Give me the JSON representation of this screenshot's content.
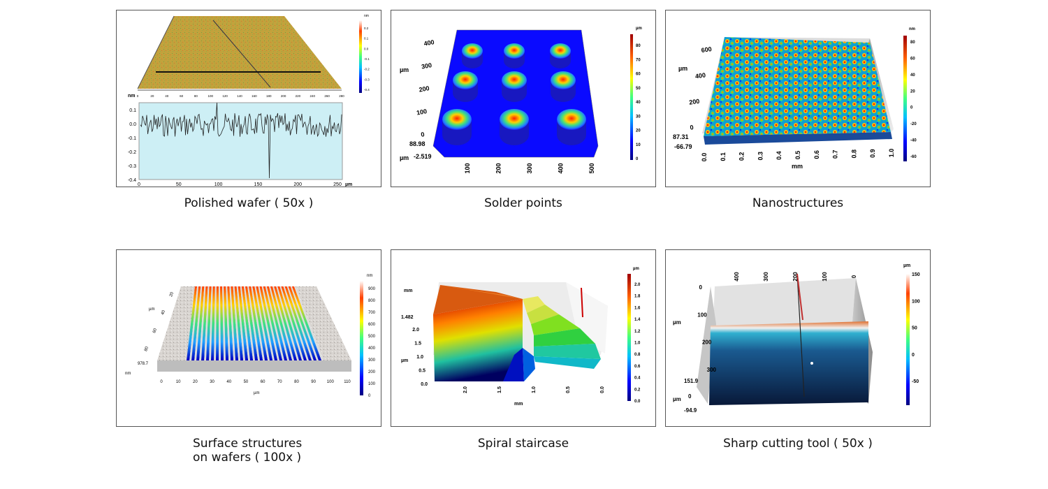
{
  "panels": [
    {
      "id": "polished-wafer",
      "caption": [
        "Polished wafer ( 50x )"
      ],
      "colorbar": {
        "unit": "nm",
        "ticks": [
          "0.2",
          "0.1",
          "0.0",
          "-0.1",
          "-0.2",
          "-0.3",
          "-0.4"
        ]
      },
      "axis_3d": [
        "0",
        "20",
        "40",
        "60",
        "80",
        "100",
        "120",
        "140",
        "160",
        "180",
        "200",
        "220",
        "240",
        "260",
        "280"
      ],
      "profile": {
        "y_unit": "nm",
        "x_unit": "µm",
        "y_ticks": [
          "0.1",
          "0.0",
          "-0.1",
          "-0.2",
          "-0.3",
          "-0.4"
        ],
        "x_ticks": [
          "0",
          "50",
          "100",
          "150",
          "200",
          "250"
        ]
      }
    },
    {
      "id": "solder-points",
      "caption": [
        "Solder points"
      ],
      "colorbar": {
        "unit": "µm",
        "ticks": [
          "80",
          "70",
          "60",
          "50",
          "40",
          "30",
          "20",
          "10",
          "0"
        ]
      },
      "y_axis": {
        "unit": "µm",
        "ticks": [
          "400",
          "300",
          "200",
          "100",
          "0"
        ]
      },
      "z_range": {
        "unit": "µm",
        "max": "88.98",
        "min": "-2.519"
      },
      "x_axis": {
        "ticks": [
          "100",
          "200",
          "300",
          "400",
          "500"
        ]
      }
    },
    {
      "id": "nanostructures",
      "caption": [
        "Nanostructures"
      ],
      "colorbar": {
        "unit": "nm",
        "ticks": [
          "80",
          "60",
          "40",
          "20",
          "0",
          "-20",
          "-40",
          "-60"
        ]
      },
      "y_axis": {
        "unit": "µm",
        "ticks": [
          "600",
          "400",
          "200",
          "0"
        ]
      },
      "z_range": {
        "max": "87.31",
        "min": "-66.79"
      },
      "x_axis": {
        "unit": "mm",
        "ticks": [
          "0.0",
          "0.1",
          "0.2",
          "0.3",
          "0.4",
          "0.5",
          "0.6",
          "0.7",
          "0.8",
          "0.9",
          "1.0"
        ]
      }
    },
    {
      "id": "surface-structures",
      "caption": [
        "Surface structures",
        "on wafers ( 100x )"
      ],
      "colorbar": {
        "unit": "nm",
        "ticks": [
          "900",
          "800",
          "700",
          "600",
          "500",
          "400",
          "300",
          "200",
          "100",
          "0"
        ]
      },
      "y_axis": {
        "unit": "µm",
        "ticks": [
          "20",
          "40",
          "60",
          "80"
        ]
      },
      "z_range": {
        "max": "978.7",
        "unit": "nm"
      },
      "x_axis": {
        "unit": "µm",
        "ticks": [
          "0",
          "10",
          "20",
          "30",
          "40",
          "50",
          "60",
          "70",
          "80",
          "90",
          "100",
          "110"
        ]
      }
    },
    {
      "id": "spiral-staircase",
      "caption": [
        "Spiral staircase"
      ],
      "colorbar": {
        "unit": "µm",
        "ticks": [
          "2.0",
          "1.8",
          "1.6",
          "1.4",
          "1.2",
          "1.0",
          "0.8",
          "0.6",
          "0.4",
          "0.2",
          "0.0"
        ]
      },
      "z_axis": {
        "unit": "µm",
        "ticks": [
          "2.0",
          "1.5",
          "1.0",
          "0.5",
          "0.0"
        ],
        "max_label": "1.482"
      },
      "y_unit": "mm",
      "x_axis": {
        "unit": "mm",
        "ticks": [
          "2.0",
          "1.5",
          "1.0",
          "0.5",
          "0.0"
        ]
      }
    },
    {
      "id": "sharp-cutting-tool",
      "caption": [
        "Sharp cutting tool ( 50x )"
      ],
      "colorbar": {
        "unit": "µm",
        "ticks": [
          "150",
          "100",
          "50",
          "0",
          "-50"
        ]
      },
      "top_axis": {
        "ticks": [
          "400",
          "300",
          "200",
          "100",
          "0"
        ]
      },
      "y_axis": {
        "unit": "µm",
        "ticks": [
          "0",
          "100",
          "200",
          "300"
        ]
      },
      "z_range": {
        "unit": "µm",
        "max": "151.9",
        "min": "-94.9",
        "zero": "0"
      }
    }
  ],
  "colors": {
    "jet": [
      "#000080",
      "#0000ff",
      "#0080ff",
      "#00ffff",
      "#80ff80",
      "#ffff00",
      "#ff8000",
      "#ff0000",
      "#800000"
    ],
    "wafer": "#c9a43a",
    "profile_fill": "#cdeff5"
  }
}
